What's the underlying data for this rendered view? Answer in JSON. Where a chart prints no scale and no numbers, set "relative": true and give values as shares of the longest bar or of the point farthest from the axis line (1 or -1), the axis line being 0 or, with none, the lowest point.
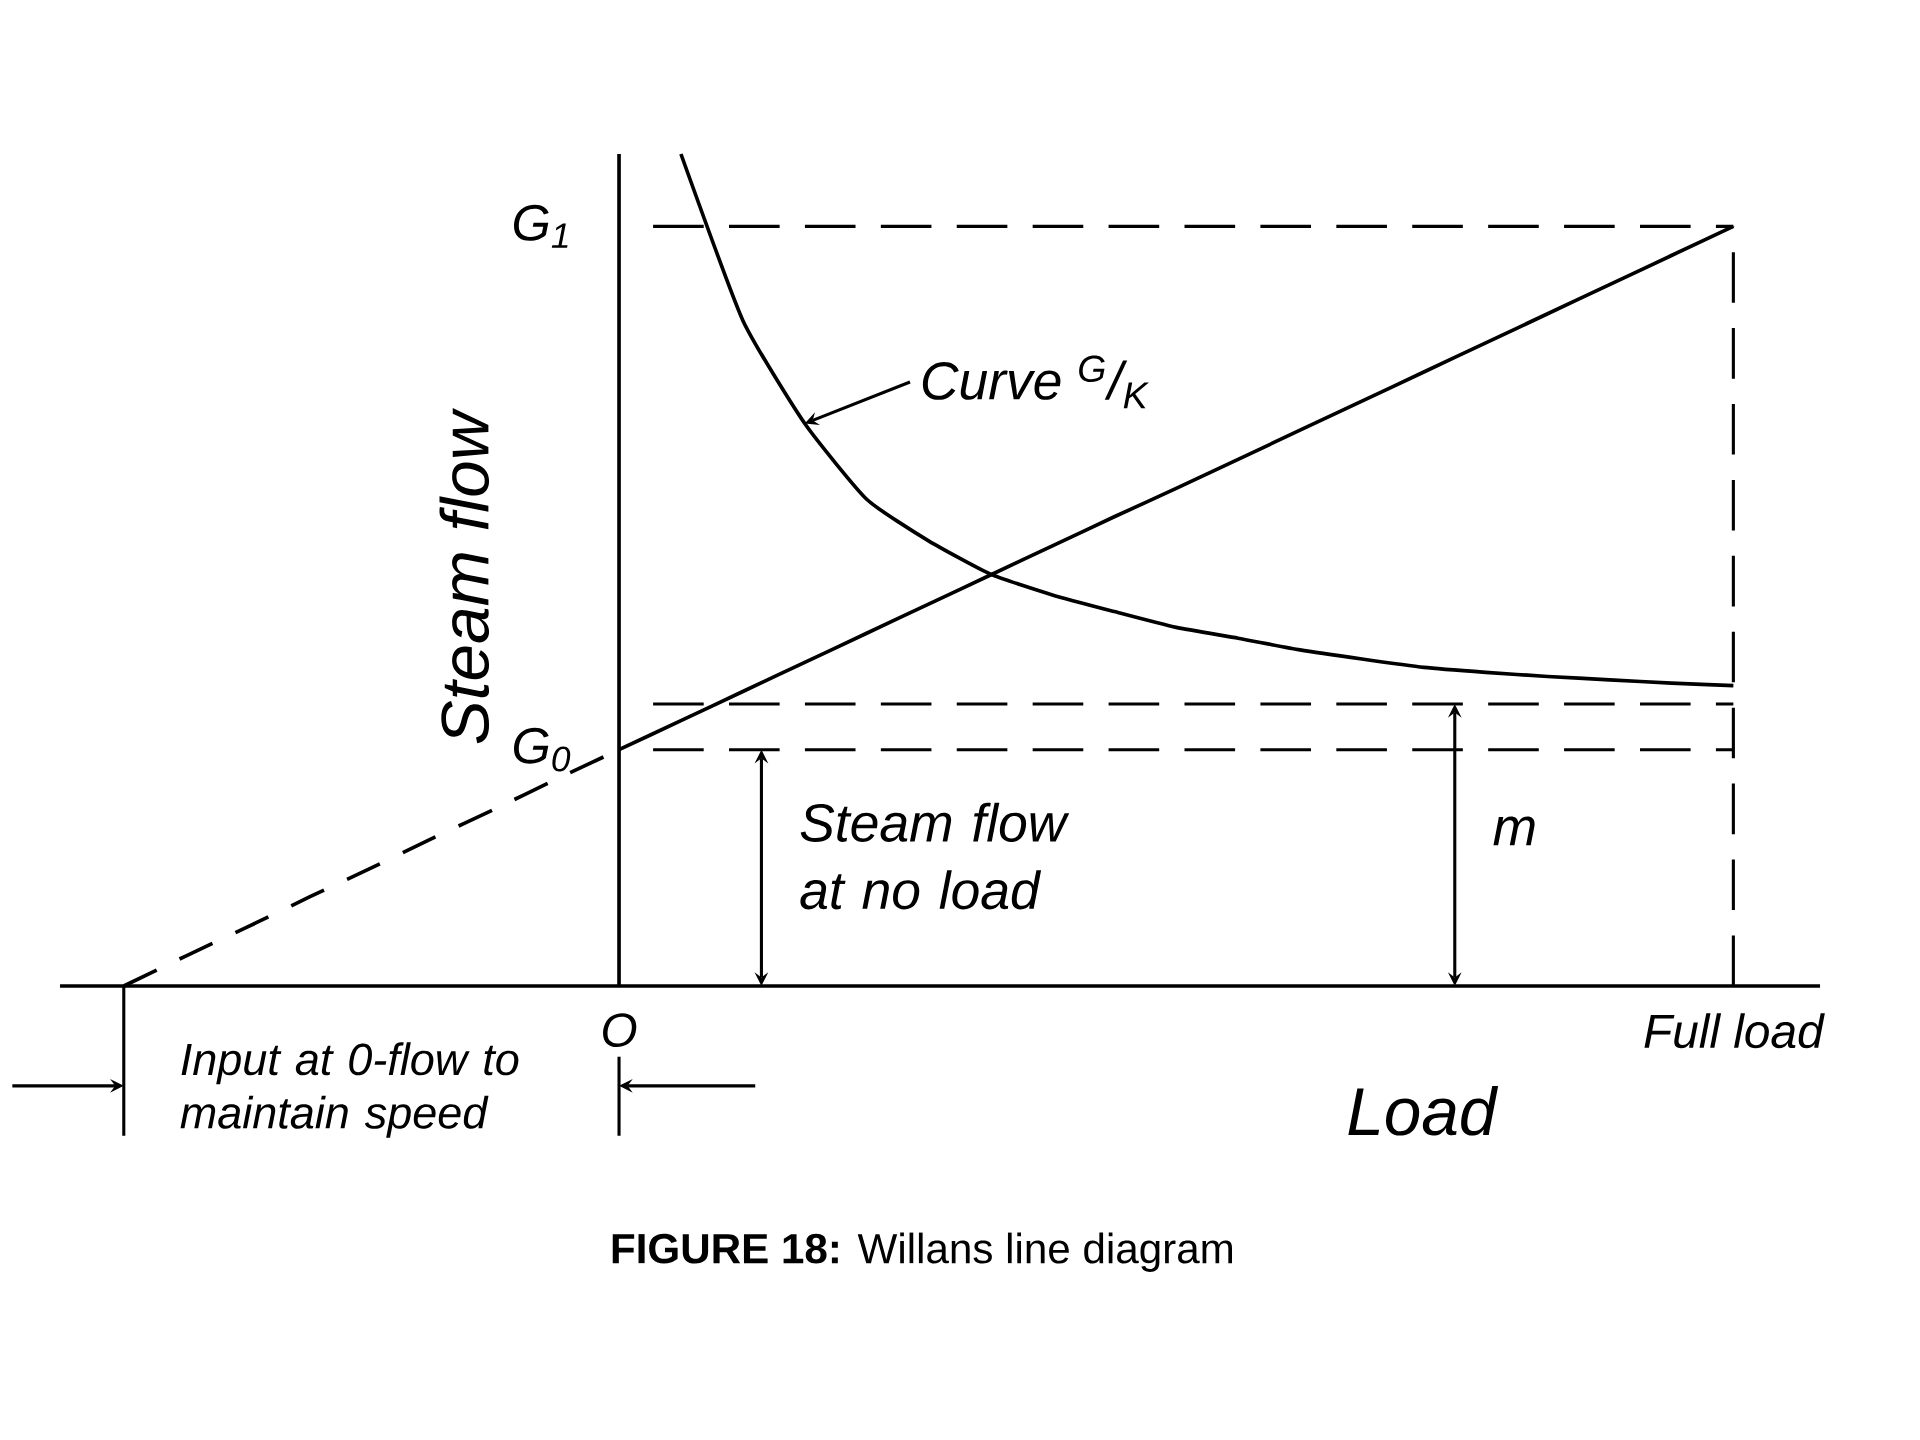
{
  "chart_data": {
    "type": "line",
    "relative": true,
    "title": "**FIGURE 18:** Willans line diagram",
    "xlabel": "Load",
    "ylabel": "Steam flow",
    "categories": [
      null,
      null,
      null,
      null,
      null,
      null,
      null,
      null,
      "O",
      null,
      null,
      null,
      null,
      null,
      null,
      null,
      null,
      null,
      null,
      null,
      null,
      null,
      null,
      null,
      null,
      null,
      "Full load"
    ],
    "series": [
      {
        "color": "#000000",
        "line_style": "dashed",
        "values": [
          0,
          0.036,
          0.071,
          0.107,
          0.142,
          0.178,
          0.213,
          0.249,
          0.284,
          null,
          null,
          null,
          null,
          null,
          null,
          null,
          null,
          null,
          null,
          null,
          null,
          null,
          null,
          null,
          null,
          null,
          null
        ]
      },
      {
        "color": "#000000",
        "line_style": "solid",
        "values": [
          null,
          null,
          null,
          null,
          null,
          null,
          null,
          null,
          0.284,
          0.319,
          0.354,
          0.389,
          0.424,
          0.459,
          0.494,
          0.529,
          0.564,
          0.598,
          0.633,
          0.668,
          0.703,
          0.738,
          0.773,
          0.808,
          0.843,
          0.878,
          0.913
        ]
      },
      {
        "color": "#000000",
        "line_style": "solid",
        "values": [
          null,
          null,
          null,
          null,
          null,
          null,
          null,
          null,
          null,
          1.0,
          0.8,
          0.676,
          0.585,
          0.535,
          0.495,
          0.47,
          0.45,
          0.431,
          0.418,
          0.404,
          0.393,
          0.383,
          0.377,
          0.372,
          0.368,
          0.364,
          0.361
        ]
      }
    ],
    "ref_lines": [
      {
        "axis": "y",
        "value": 0.913,
        "label": "G$_{1}$",
        "line_style": "dashed"
      },
      {
        "axis": "y",
        "value": 0.284,
        "label": "G$_{0}$",
        "line_style": "dashed"
      },
      {
        "axis": "y",
        "value": 0.339,
        "line_style": "dashed"
      },
      {
        "axis": "x",
        "value": "Full load",
        "line_style": "dashed"
      }
    ],
    "annotations": [
      "Curve $^{G}$/$_{K}$",
      "Steam flow at no load",
      "m",
      "Input at 0-flow to maintain speed"
    ]
  }
}
